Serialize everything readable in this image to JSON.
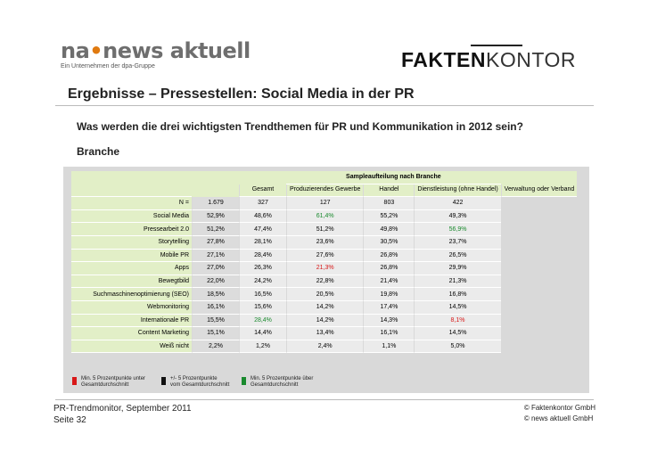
{
  "logos": {
    "na_prefix": "na",
    "na_dot": "•",
    "na_main": "news aktuell",
    "na_sub": "Ein Unternehmen der dpa-Gruppe",
    "fk_bold": "FAKTEN",
    "fk_light": "KONTOR"
  },
  "title": "Ergebnisse – Pressestellen: Social Media in der PR",
  "question": "Was werden die drei wichtigsten Trendthemen für PR und Kommunikation in 2012 sein?",
  "section": "Branche",
  "table": {
    "group_header": "Sampleaufteilung nach Branche",
    "columns": [
      "Gesamt",
      "Produzierendes Gewerbe",
      "Handel",
      "Dienstleistung (ohne Handel)",
      "Verwaltung oder Verband"
    ],
    "n_row": {
      "label": "N =",
      "values": [
        "1.679",
        "327",
        "127",
        "803",
        "422"
      ]
    },
    "rows": [
      {
        "label": "Social Media",
        "values": [
          "52,9%",
          "48,6%",
          "61,4%",
          "55,2%",
          "49,3%"
        ],
        "status": [
          "",
          "",
          "hi",
          "",
          ""
        ]
      },
      {
        "label": "Pressearbeit 2.0",
        "values": [
          "51,2%",
          "47,4%",
          "51,2%",
          "49,8%",
          "56,9%"
        ],
        "status": [
          "",
          "",
          "",
          "",
          "hi"
        ]
      },
      {
        "label": "Storytelling",
        "values": [
          "27,8%",
          "28,1%",
          "23,6%",
          "30,5%",
          "23,7%"
        ],
        "status": [
          "",
          "",
          "",
          "",
          ""
        ]
      },
      {
        "label": "Mobile PR",
        "values": [
          "27,1%",
          "28,4%",
          "27,6%",
          "26,8%",
          "26,5%"
        ],
        "status": [
          "",
          "",
          "",
          "",
          ""
        ]
      },
      {
        "label": "Apps",
        "values": [
          "27,0%",
          "26,3%",
          "21,3%",
          "26,8%",
          "29,9%"
        ],
        "status": [
          "",
          "",
          "lo",
          "",
          ""
        ]
      },
      {
        "label": "Bewegtbild",
        "values": [
          "22,0%",
          "24,2%",
          "22,8%",
          "21,4%",
          "21,3%"
        ],
        "status": [
          "",
          "",
          "",
          "",
          ""
        ]
      },
      {
        "label": "Suchmaschinenoptimierung (SEO)",
        "values": [
          "18,5%",
          "16,5%",
          "20,5%",
          "19,8%",
          "16,8%"
        ],
        "status": [
          "",
          "",
          "",
          "",
          ""
        ]
      },
      {
        "label": "Webmonitoring",
        "values": [
          "16,1%",
          "15,6%",
          "14,2%",
          "17,4%",
          "14,5%"
        ],
        "status": [
          "",
          "",
          "",
          "",
          ""
        ]
      },
      {
        "label": "Internationale PR",
        "values": [
          "15,5%",
          "28,4%",
          "14,2%",
          "14,3%",
          "8,1%"
        ],
        "status": [
          "",
          "hi",
          "",
          "",
          "lo"
        ]
      },
      {
        "label": "Content Marketing",
        "values": [
          "15,1%",
          "14,4%",
          "13,4%",
          "16,1%",
          "14,5%"
        ],
        "status": [
          "",
          "",
          "",
          "",
          ""
        ]
      },
      {
        "label": "Weiß nicht",
        "values": [
          "2,2%",
          "1,2%",
          "2,4%",
          "1,1%",
          "5,0%"
        ],
        "status": [
          "",
          "",
          "",
          "",
          ""
        ]
      }
    ]
  },
  "legend": [
    {
      "color": "#d81818",
      "line1": "Min. 5 Prozentpunkte unter",
      "line2": "Gesamtdurchschnitt"
    },
    {
      "color": "#111111",
      "line1": "+/- 5 Prozentpunkte",
      "line2": "vom Gesamtdurchschnitt"
    },
    {
      "color": "#1a8a2e",
      "line1": "Min. 5 Prozentpunkte über",
      "line2": "Gesamtdurchschnitt"
    }
  ],
  "footer": {
    "left1": "PR-Trendmonitor, September 2011",
    "left2": "Seite 32",
    "right1": "© Faktenkontor GmbH",
    "right2": "© news aktuell GmbH"
  },
  "colors": {
    "positive": "#1a8a2e",
    "negative": "#d81818",
    "label_bg": "#e2efc7",
    "panel_bg": "#d9d9d9"
  }
}
